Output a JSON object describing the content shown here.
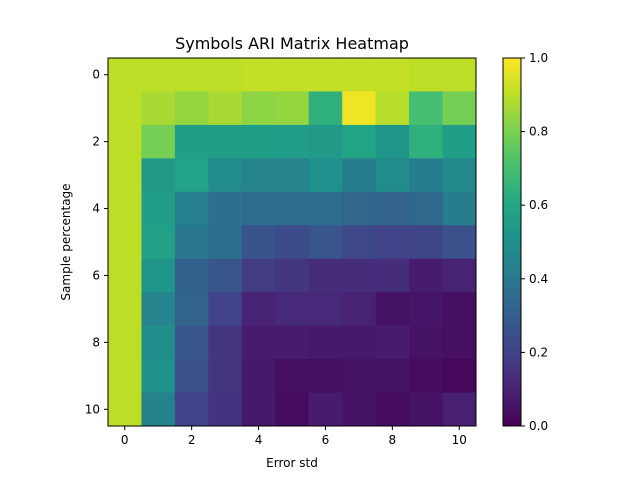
{
  "chart_data": {
    "type": "heatmap",
    "title": "Symbols ARI Matrix Heatmap",
    "xlabel": "Error std",
    "ylabel": "Sample percentage",
    "x": [
      0,
      1,
      2,
      3,
      4,
      5,
      6,
      7,
      8,
      9,
      10
    ],
    "y": [
      0,
      1,
      2,
      3,
      4,
      5,
      6,
      7,
      8,
      9,
      10
    ],
    "x_ticks": [
      0,
      2,
      4,
      6,
      8,
      10
    ],
    "y_ticks": [
      0,
      2,
      4,
      6,
      8,
      10
    ],
    "colorbar": {
      "colormap": "viridis",
      "range": [
        0.0,
        1.0
      ],
      "ticks": [
        0.0,
        0.2,
        0.4,
        0.6,
        0.8,
        1.0
      ]
    },
    "values": [
      [
        0.9,
        0.9,
        0.9,
        0.9,
        0.91,
        0.91,
        0.91,
        0.91,
        0.91,
        0.9,
        0.9
      ],
      [
        0.9,
        0.87,
        0.84,
        0.87,
        0.83,
        0.84,
        0.64,
        0.98,
        0.89,
        0.7,
        0.79
      ],
      [
        0.9,
        0.79,
        0.56,
        0.56,
        0.56,
        0.55,
        0.54,
        0.59,
        0.52,
        0.64,
        0.56
      ],
      [
        0.9,
        0.54,
        0.58,
        0.48,
        0.45,
        0.45,
        0.5,
        0.42,
        0.48,
        0.42,
        0.47
      ],
      [
        0.9,
        0.55,
        0.43,
        0.37,
        0.35,
        0.35,
        0.35,
        0.33,
        0.32,
        0.34,
        0.42
      ],
      [
        0.9,
        0.57,
        0.4,
        0.36,
        0.26,
        0.23,
        0.27,
        0.22,
        0.2,
        0.21,
        0.25
      ],
      [
        0.9,
        0.52,
        0.31,
        0.27,
        0.18,
        0.16,
        0.13,
        0.13,
        0.13,
        0.08,
        0.1
      ],
      [
        0.9,
        0.45,
        0.32,
        0.2,
        0.1,
        0.12,
        0.12,
        0.1,
        0.05,
        0.06,
        0.04
      ],
      [
        0.9,
        0.49,
        0.27,
        0.16,
        0.08,
        0.08,
        0.07,
        0.07,
        0.08,
        0.05,
        0.04
      ],
      [
        0.9,
        0.51,
        0.25,
        0.16,
        0.07,
        0.04,
        0.04,
        0.05,
        0.05,
        0.03,
        0.02
      ],
      [
        0.9,
        0.44,
        0.2,
        0.15,
        0.07,
        0.03,
        0.08,
        0.05,
        0.03,
        0.05,
        0.09
      ]
    ]
  }
}
